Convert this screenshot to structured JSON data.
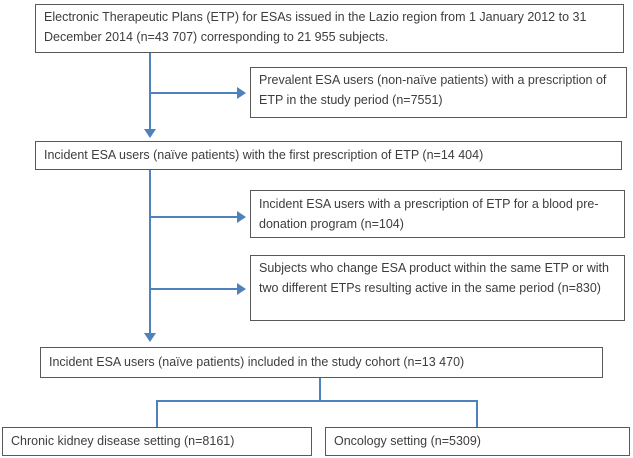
{
  "diagram": {
    "type": "flowchart",
    "description": "Patient selection flow for ESA study in Lazio region",
    "colors": {
      "arrow": "#4f81bd",
      "box_border": "#595959",
      "text": "#3d3d3d",
      "background": "#ffffff"
    },
    "boxes": {
      "source": {
        "text": "Electronic Therapeutic Plans (ETP) for ESAs issued in the Lazio region from 1 January 2012 to 31 December 2014 (n=43 707) corresponding to 21 955 subjects."
      },
      "prevalent_excluded": {
        "text": "Prevalent ESA users (non-naïve patients) with a prescription of ETP in the study period (n=7551)"
      },
      "incident_first_etp": {
        "text": "Incident ESA users (naïve patients) with the first prescription of ETP (n=14 404)"
      },
      "pre_donation_excluded": {
        "text": "Incident ESA users with a prescription of ETP for a blood pre-donation program (n=104)"
      },
      "product_switch_excluded": {
        "text": "Subjects who change ESA product within the same ETP or with two different ETPs resulting active in the same period (n=830)"
      },
      "study_cohort": {
        "text": "Incident ESA users (naïve patients) included in the study cohort (n=13 470)"
      },
      "ckd_setting": {
        "text": "Chronic kidney disease setting (n=8161)"
      },
      "oncology_setting": {
        "text": "Oncology setting (n=5309)"
      }
    }
  }
}
